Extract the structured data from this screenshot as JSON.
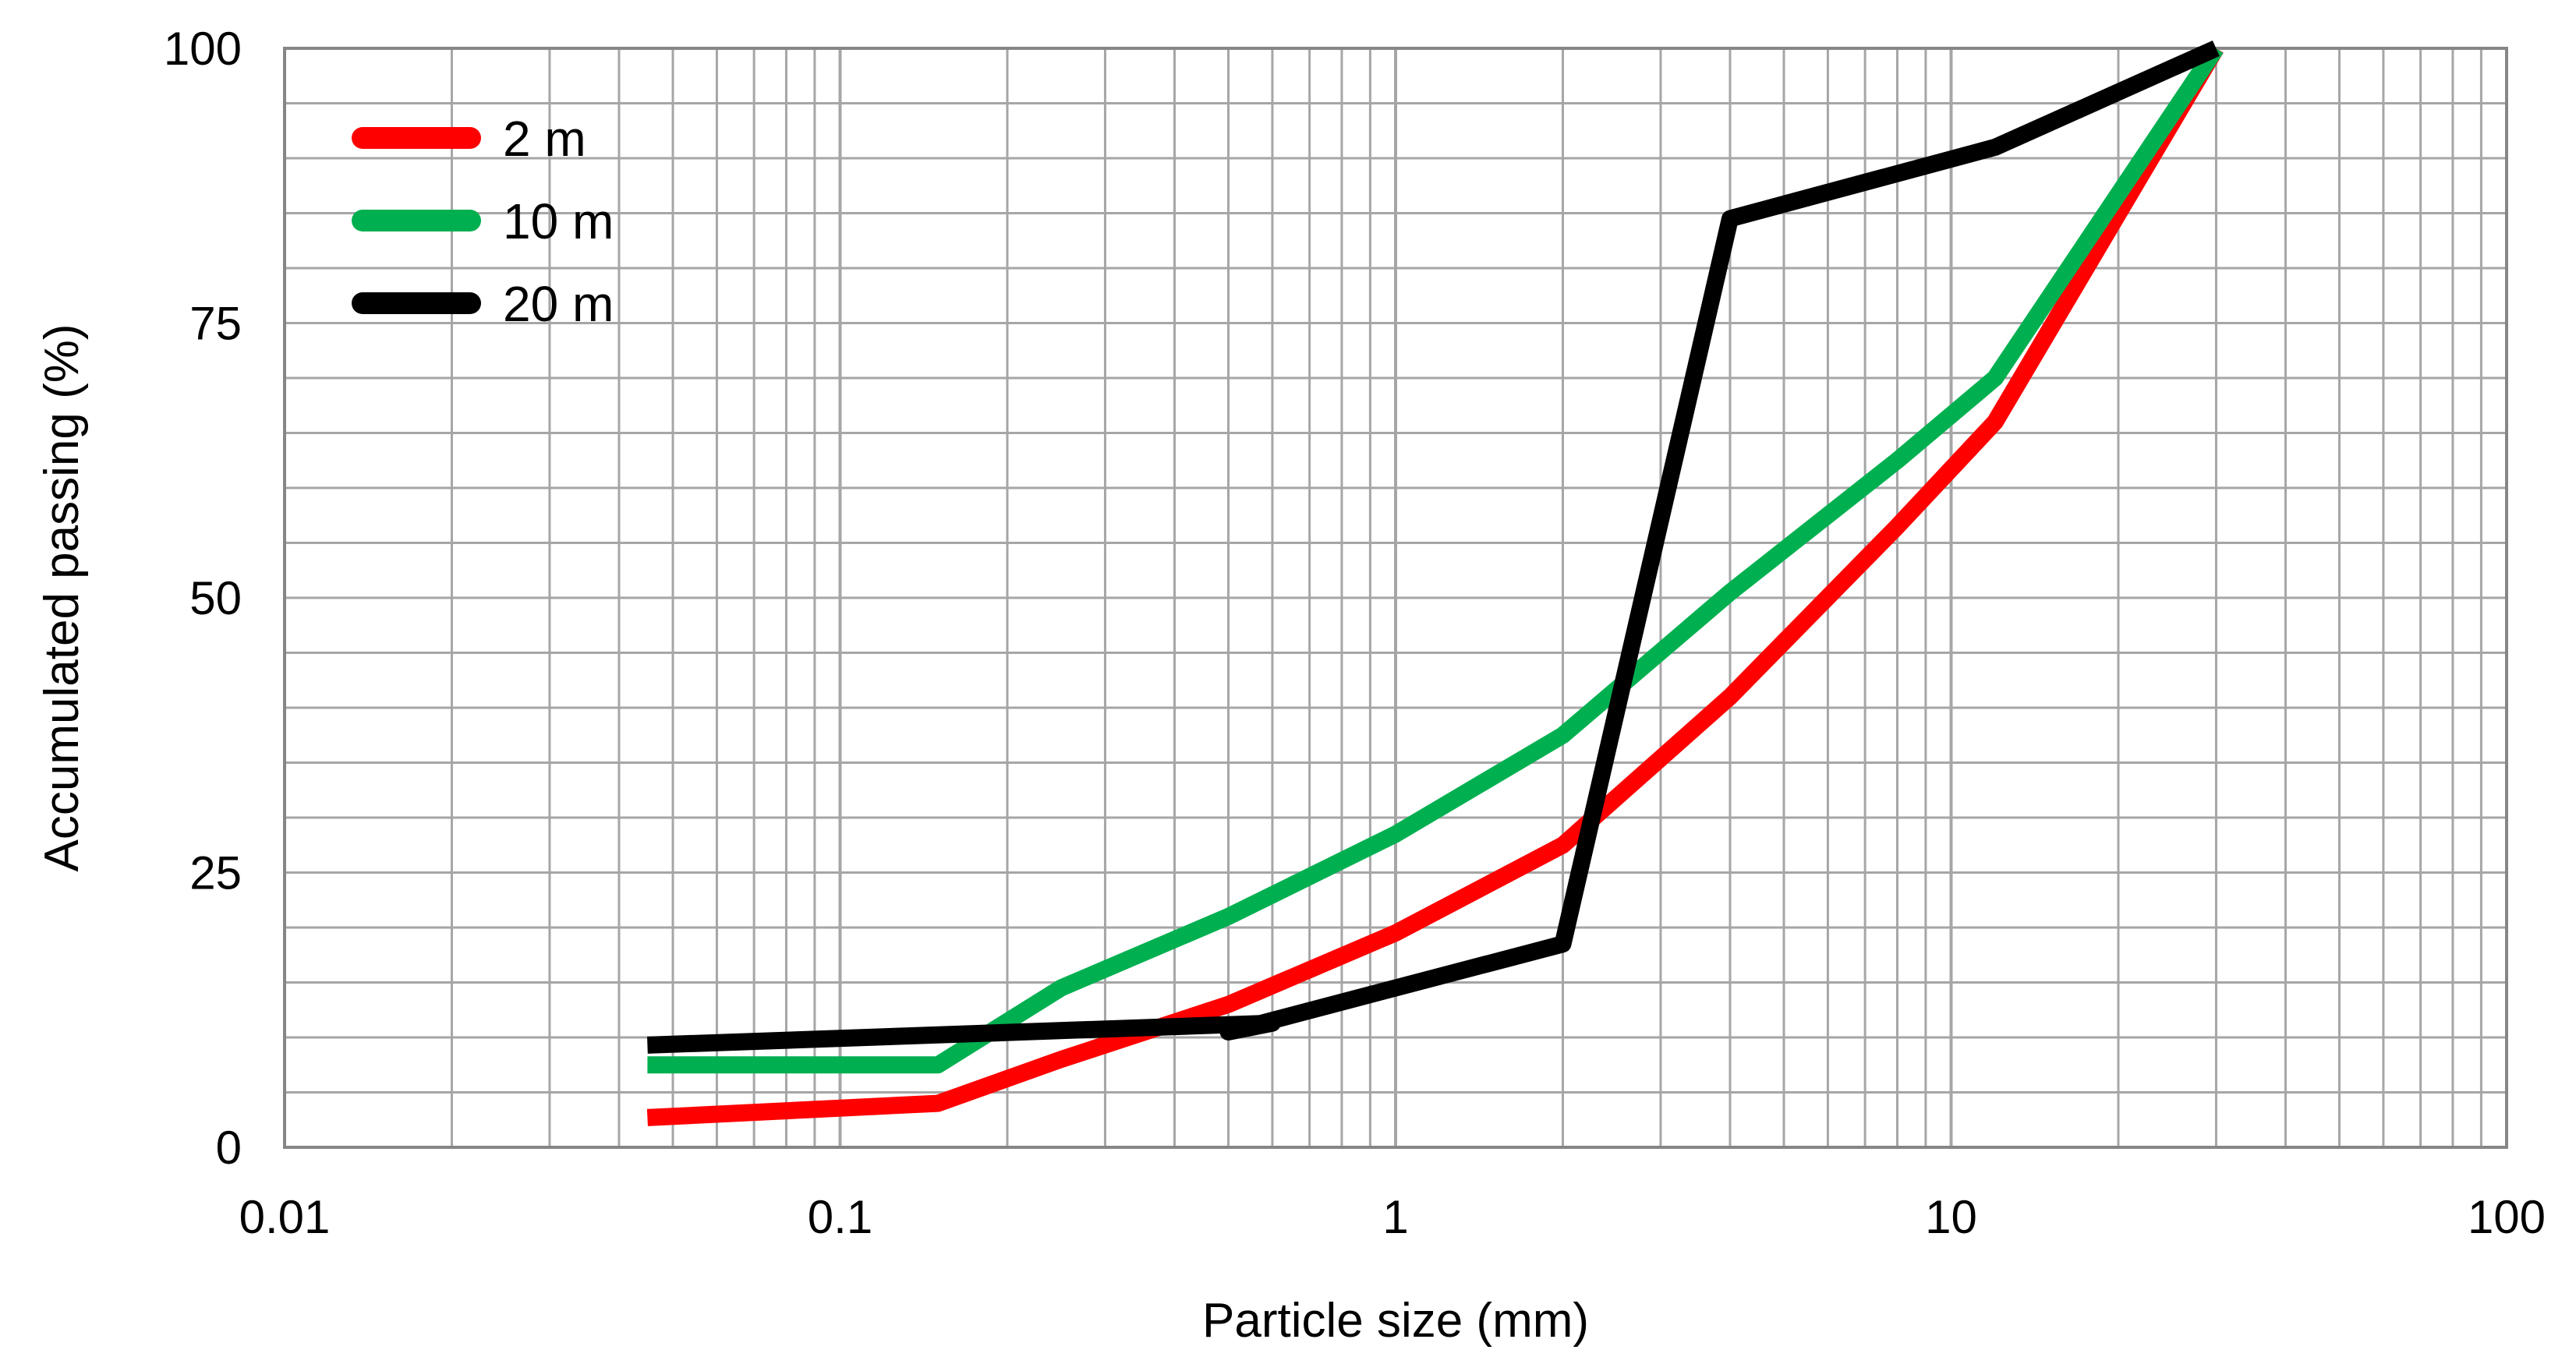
{
  "chart_data": {
    "type": "line",
    "title": "",
    "xlabel": "Particle size (mm)",
    "ylabel": "Accumulated passing (%)",
    "xscale": "log",
    "xlim": [
      0.01,
      100
    ],
    "ylim": [
      0,
      100
    ],
    "x_ticks": [
      0.01,
      0.1,
      1,
      10,
      100
    ],
    "x_tick_labels": [
      "0.01",
      "0.1",
      "1",
      "10",
      "100"
    ],
    "y_ticks": [
      0,
      25,
      50,
      75,
      100
    ],
    "y_tick_labels": [
      "0",
      "25",
      "50",
      "75",
      "100"
    ],
    "y_minor_step": 5,
    "grid": true,
    "legend_position": "top-left",
    "series": [
      {
        "name": "2 m",
        "color": "#ff0000",
        "x": [
          0.045,
          0.15,
          0.25,
          0.5,
          1,
          2,
          4,
          8,
          12,
          30
        ],
        "y": [
          2.7,
          4,
          8,
          13,
          19.5,
          27.5,
          41,
          56.5,
          66,
          100
        ]
      },
      {
        "name": "10 m",
        "color": "#00b050",
        "x": [
          0.045,
          0.15,
          0.25,
          0.5,
          1,
          2,
          4,
          8,
          12,
          30
        ],
        "y": [
          7.5,
          7.5,
          14.5,
          21,
          28.5,
          37.5,
          50.5,
          62.5,
          70,
          100
        ]
      },
      {
        "name": "20 m",
        "color": "#000000",
        "x": [
          0.045,
          0.6,
          0.5,
          1,
          2,
          4,
          12,
          30
        ],
        "y": [
          9.3,
          11.3,
          10.5,
          14.5,
          18.5,
          84.5,
          91,
          100
        ]
      }
    ]
  }
}
